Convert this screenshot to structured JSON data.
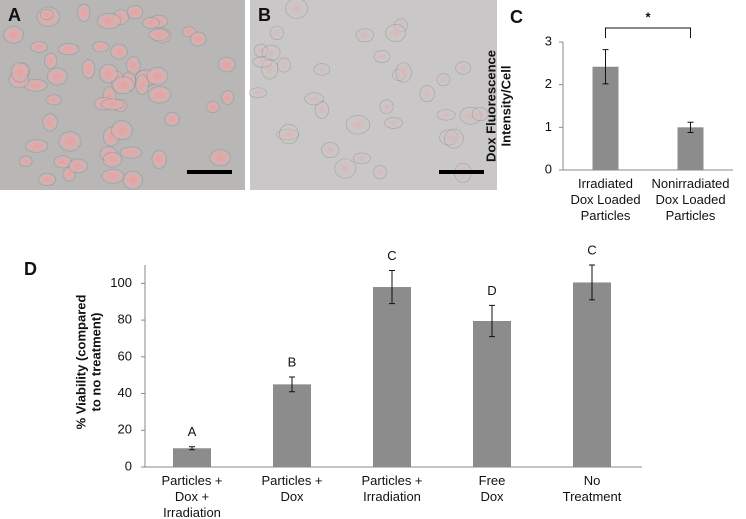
{
  "images": [
    {
      "label": "A"
    },
    {
      "label": "B"
    }
  ],
  "chart_data": [
    {
      "type": "bar",
      "panel_label": "C",
      "ylabel": [
        "Dox Fluorescence",
        "Intensity/Cell"
      ],
      "categories": [
        [
          "Irradiated",
          "Dox Loaded",
          "Particles"
        ],
        [
          "Nonirradiated",
          "Dox Loaded",
          "Particles"
        ]
      ],
      "values": [
        2.42,
        1.0
      ],
      "errors": [
        0.4,
        0.12
      ],
      "color": "#8c8c8c",
      "ylim": [
        0,
        3
      ],
      "yticks": [
        0,
        1,
        2,
        3
      ],
      "annotation": "*"
    },
    {
      "type": "bar",
      "panel_label": "D",
      "ylabel": [
        "% Viability (compared",
        "to no treatment)"
      ],
      "categories": [
        [
          "Particles +",
          "Dox +",
          "Irradiation"
        ],
        [
          "Particles +",
          "Dox"
        ],
        [
          "Particles +",
          "Irradiation"
        ],
        [
          "Free",
          "Dox"
        ],
        [
          "No",
          "Treatment"
        ]
      ],
      "values": [
        10.2,
        45,
        98,
        79.5,
        100.5
      ],
      "errors": [
        0.8,
        4,
        9,
        8.5,
        9.5
      ],
      "color": "#8c8c8c",
      "value_letters": [
        "A",
        "B",
        "C",
        "D",
        "C"
      ],
      "ylim": [
        0,
        110
      ],
      "yticks": [
        0,
        20,
        40,
        60,
        80,
        100
      ]
    }
  ]
}
